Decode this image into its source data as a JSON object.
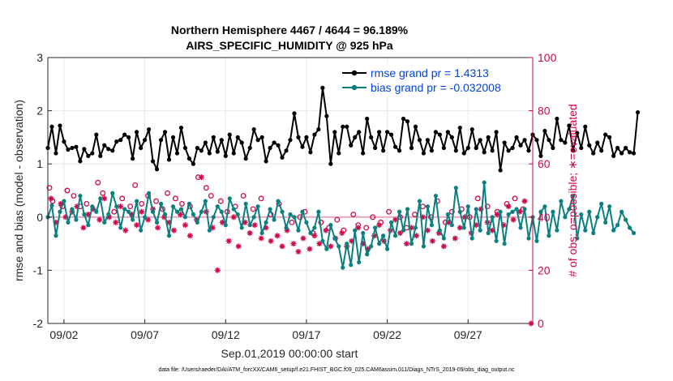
{
  "chart_data": {
    "type": "line",
    "title": [
      "Northern Hemisphere 4467 / 4644 = 96.189%",
      "AIRS_SPECIFIC_HUMIDITY @ 925 hPa"
    ],
    "xlabel": "Sep.01,2019 00:00:00 start",
    "ylabel_left": "rmse and bias (model - observation)",
    "ylabel_right": "# of obs: o=possible; ∗=evaluated",
    "footnote": "data file: /Users/raeder/DAI/ATM_forcXX/CAM6_setup/f.e21.FHIST_BGC.f09_025.CAM6assim.011/Diags_NTrS_2019-09/obs_diag_output.nc",
    "xlim": [
      0.5,
      30.5
    ],
    "ylim_left": [
      -2,
      3
    ],
    "ylim_right": [
      0,
      100
    ],
    "x_ticks": [
      1.5,
      6.5,
      11.5,
      16.5,
      21.5,
      26.5
    ],
    "x_tick_labels": [
      "09/02",
      "09/07",
      "09/12",
      "09/17",
      "09/22",
      "09/27"
    ],
    "y_ticks_left": [
      -2,
      -1,
      0,
      1,
      2,
      3
    ],
    "y_tick_labels_left": [
      "-2",
      "-1",
      "0",
      "1",
      "2",
      "3"
    ],
    "y_ticks_right": [
      0,
      20,
      40,
      60,
      80,
      100
    ],
    "y_tick_labels_right": [
      "0",
      "20",
      "40",
      "60",
      "80",
      "100"
    ],
    "colors": {
      "rmse": "#000000",
      "bias": "#0a8080",
      "obs": "#cc0a4c",
      "zero": "#e9a7c2",
      "grid": "#e6e6e6",
      "legend_text": "#0044dd"
    },
    "legend": [
      {
        "name": "rmse",
        "label": "rmse grand pr = 1.4313"
      },
      {
        "name": "bias",
        "label": "bias grand pr = -0.032008"
      }
    ],
    "series": [
      {
        "name": "rmse",
        "x_start": 0.5,
        "x_step": 0.25,
        "values": [
          1.3,
          1.7,
          1.2,
          1.72,
          1.42,
          1.27,
          1.3,
          1.32,
          1.05,
          1.28,
          1.15,
          1.2,
          1.55,
          1.15,
          1.35,
          1.28,
          1.25,
          1.42,
          1.45,
          1.55,
          1.5,
          1.1,
          1.6,
          1.3,
          1.45,
          1.65,
          1.05,
          0.9,
          1.45,
          1.6,
          1.08,
          1.5,
          1.2,
          1.68,
          1.3,
          1.1,
          1.0,
          1.3,
          1.25,
          1.4,
          1.2,
          1.5,
          1.23,
          1.45,
          1.15,
          1.55,
          1.2,
          1.5,
          1.4,
          1.1,
          1.3,
          1.65,
          1.45,
          1.5,
          1.05,
          1.3,
          1.4,
          1.35,
          1.12,
          1.25,
          1.45,
          1.95,
          1.5,
          1.32,
          1.5,
          1.22,
          1.55,
          1.65,
          2.43,
          1.9,
          1.0,
          1.6,
          1.2,
          1.7,
          1.7,
          1.35,
          1.5,
          1.6,
          1.2,
          1.85,
          1.5,
          1.3,
          1.6,
          1.25,
          1.6,
          1.55,
          1.32,
          1.25,
          1.85,
          1.8,
          1.3,
          1.7,
          1.45,
          1.2,
          1.45,
          1.25,
          1.6,
          1.55,
          1.3,
          1.6,
          1.5,
          1.25,
          1.68,
          1.2,
          1.3,
          1.65,
          1.3,
          1.45,
          1.22,
          1.5,
          1.25,
          1.6,
          0.88,
          1.4,
          1.25,
          1.3,
          1.5,
          1.35,
          1.45,
          1.25,
          1.55,
          1.45,
          1.15,
          1.62,
          1.45,
          1.3,
          1.85,
          1.45,
          1.4,
          1.72,
          1.25,
          1.58,
          1.3,
          1.7,
          1.35,
          1.2,
          1.4,
          1.25,
          1.55,
          1.5,
          1.15,
          1.3,
          1.2,
          1.3,
          1.22,
          1.2,
          1.97
        ]
      },
      {
        "name": "bias",
        "x_start": 0.5,
        "x_step": 0.25,
        "values": [
          0.0,
          0.22,
          -0.35,
          0.1,
          0.3,
          -0.1,
          0.15,
          -0.05,
          0.4,
          0.05,
          -0.15,
          0.2,
          0.1,
          0.35,
          -0.1,
          0.05,
          0.45,
          0.2,
          -0.2,
          0.15,
          0.1,
          -0.05,
          0.3,
          -0.25,
          0.0,
          0.45,
          0.1,
          -0.1,
          0.25,
          0.05,
          -0.35,
          0.2,
          0.1,
          0.15,
          0.0,
          0.25,
          0.05,
          -0.1,
          0.1,
          0.3,
          -0.25,
          0.0,
          0.2,
          0.1,
          -0.15,
          0.35,
          0.15,
          0.05,
          -0.2,
          0.25,
          -0.15,
          0.0,
          0.2,
          -0.3,
          -0.1,
          0.15,
          -0.05,
          0.3,
          0.1,
          -0.2,
          0.05,
          0.0,
          -0.25,
          0.1,
          -0.1,
          -0.3,
          -0.2,
          0.1,
          -0.45,
          -0.6,
          -0.15,
          -0.4,
          -0.55,
          -0.95,
          -0.5,
          -0.9,
          -0.25,
          -0.85,
          -0.3,
          -0.7,
          -0.55,
          -0.2,
          -0.5,
          -0.35,
          -0.6,
          -0.1,
          -0.35,
          0.1,
          -0.25,
          0.15,
          -0.5,
          -0.2,
          0.3,
          -0.55,
          0.2,
          -0.15,
          0.4,
          -0.25,
          -0.4,
          0.05,
          -0.15,
          0.55,
          0.1,
          -0.2,
          0.2,
          -0.4,
          0.15,
          -0.25,
          0.65,
          -0.3,
          0.0,
          -0.45,
          0.1,
          -0.5,
          0.05,
          0.1,
          0.15,
          -0.2,
          0.15,
          -0.4,
          0.0,
          -0.45,
          0.1,
          0.2,
          -0.35,
          0.1,
          -0.25,
          0.3,
          0.0,
          0.15,
          0.4,
          -0.4,
          0.05,
          -0.25,
          0.1,
          -0.3,
          0.0,
          0.25,
          -0.1,
          0.2,
          -0.25,
          -0.15,
          0.1,
          -0.05,
          -0.2,
          -0.3
        ]
      }
    ],
    "obs_possible": {
      "x": [
        0.6,
        0.8,
        1.4,
        1.7,
        2.1,
        2.5,
        2.9,
        3.6,
        3.9,
        4.6,
        5.1,
        5.6,
        5.9,
        6.3,
        6.7,
        7.2,
        7.6,
        7.9,
        8.4,
        8.8,
        9.3,
        9.8,
        10.3,
        10.6,
        11.2,
        11.6,
        12.1,
        12.6,
        13.2,
        13.7,
        14.3,
        14.8,
        15.6,
        16.1,
        16.4,
        16.9,
        17.4,
        17.9,
        18.4,
        18.8,
        19.4,
        19.7,
        20.2,
        20.6,
        21.1,
        21.6,
        22.3,
        22.7,
        23.2,
        23.7,
        24.2,
        24.6,
        25.1,
        25.5,
        26.1,
        26.6,
        27.1,
        27.7,
        28.3,
        28.9,
        29.4,
        29.9
      ],
      "values": [
        51,
        46,
        44,
        50,
        48,
        44,
        45,
        53,
        49,
        42,
        47,
        44,
        52,
        45,
        48,
        46,
        43,
        49,
        47,
        45,
        44,
        55,
        51,
        48,
        46,
        42,
        44,
        48,
        43,
        47,
        41,
        45,
        38,
        40,
        42,
        34,
        38,
        36,
        39,
        35,
        41,
        37,
        36,
        40,
        38,
        42,
        40,
        36,
        41,
        44,
        40,
        46,
        38,
        42,
        43,
        40,
        47,
        44,
        42,
        45,
        47,
        43
      ]
    },
    "obs_evaluated": {
      "x": [
        0.7,
        1.0,
        1.3,
        1.6,
        2.0,
        2.3,
        2.7,
        3.0,
        3.3,
        3.7,
        4.0,
        4.3,
        4.7,
        5.0,
        5.3,
        5.7,
        6.0,
        6.3,
        6.7,
        7.0,
        7.3,
        7.7,
        8.0,
        8.3,
        8.7,
        9.0,
        9.3,
        9.7,
        10.0,
        10.3,
        10.7,
        11.0,
        11.3,
        11.7,
        12.0,
        12.3,
        12.7,
        13.0,
        13.3,
        13.7,
        14.0,
        14.3,
        14.7,
        15.0,
        15.3,
        15.7,
        16.0,
        16.3,
        16.7,
        17.0,
        17.3,
        17.7,
        18.0,
        18.3,
        18.7,
        19.0,
        19.3,
        19.7,
        20.0,
        20.3,
        20.7,
        21.0,
        21.3,
        21.7,
        22.0,
        22.3,
        22.7,
        23.0,
        23.3,
        23.7,
        24.0,
        24.3,
        24.7,
        25.0,
        25.3,
        25.7,
        26.0,
        26.3,
        26.7,
        27.0,
        27.3,
        27.7,
        28.0,
        28.3,
        28.7,
        29.0,
        29.3,
        29.7,
        30.0,
        30.4
      ],
      "values": [
        47,
        38,
        45,
        40,
        42,
        44,
        36,
        41,
        43,
        39,
        47,
        40,
        38,
        44,
        35,
        41,
        37,
        42,
        39,
        43,
        36,
        40,
        38,
        35,
        41,
        37,
        33,
        39,
        55,
        42,
        36,
        20,
        38,
        31,
        40,
        29,
        38,
        34,
        37,
        32,
        36,
        31,
        33,
        29,
        35,
        30,
        27,
        32,
        28,
        33,
        30,
        35,
        29,
        32,
        34,
        29,
        31,
        36,
        30,
        28,
        33,
        37,
        31,
        35,
        39,
        34,
        30,
        36,
        33,
        40,
        35,
        31,
        34,
        29,
        38,
        32,
        36,
        40,
        34,
        37,
        43,
        38,
        35,
        41,
        37,
        44,
        39,
        42,
        46,
        0
      ]
    }
  }
}
